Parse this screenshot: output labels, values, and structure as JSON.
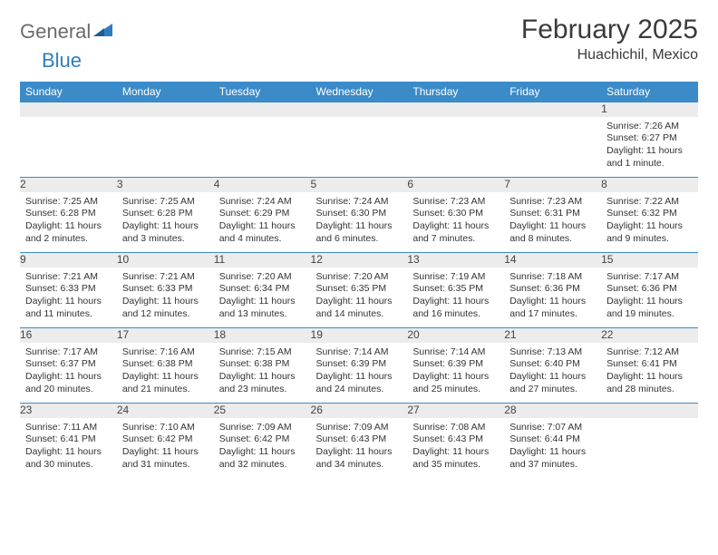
{
  "brand": {
    "part1": "General",
    "part2": "Blue"
  },
  "title": "February 2025",
  "location": "Huachichil, Mexico",
  "colors": {
    "header_bg": "#3b8bc8",
    "header_fg": "#ffffff",
    "daynum_bg": "#ececec",
    "border": "#3b8bc8",
    "logo_blue": "#2f7dc0",
    "logo_gray": "#6b6b6b"
  },
  "weekdays": [
    "Sunday",
    "Monday",
    "Tuesday",
    "Wednesday",
    "Thursday",
    "Friday",
    "Saturday"
  ],
  "weeks": [
    [
      null,
      null,
      null,
      null,
      null,
      null,
      {
        "d": "1",
        "sr": "Sunrise: 7:26 AM",
        "ss": "Sunset: 6:27 PM",
        "dl": "Daylight: 11 hours and 1 minute."
      }
    ],
    [
      {
        "d": "2",
        "sr": "Sunrise: 7:25 AM",
        "ss": "Sunset: 6:28 PM",
        "dl": "Daylight: 11 hours and 2 minutes."
      },
      {
        "d": "3",
        "sr": "Sunrise: 7:25 AM",
        "ss": "Sunset: 6:28 PM",
        "dl": "Daylight: 11 hours and 3 minutes."
      },
      {
        "d": "4",
        "sr": "Sunrise: 7:24 AM",
        "ss": "Sunset: 6:29 PM",
        "dl": "Daylight: 11 hours and 4 minutes."
      },
      {
        "d": "5",
        "sr": "Sunrise: 7:24 AM",
        "ss": "Sunset: 6:30 PM",
        "dl": "Daylight: 11 hours and 6 minutes."
      },
      {
        "d": "6",
        "sr": "Sunrise: 7:23 AM",
        "ss": "Sunset: 6:30 PM",
        "dl": "Daylight: 11 hours and 7 minutes."
      },
      {
        "d": "7",
        "sr": "Sunrise: 7:23 AM",
        "ss": "Sunset: 6:31 PM",
        "dl": "Daylight: 11 hours and 8 minutes."
      },
      {
        "d": "8",
        "sr": "Sunrise: 7:22 AM",
        "ss": "Sunset: 6:32 PM",
        "dl": "Daylight: 11 hours and 9 minutes."
      }
    ],
    [
      {
        "d": "9",
        "sr": "Sunrise: 7:21 AM",
        "ss": "Sunset: 6:33 PM",
        "dl": "Daylight: 11 hours and 11 minutes."
      },
      {
        "d": "10",
        "sr": "Sunrise: 7:21 AM",
        "ss": "Sunset: 6:33 PM",
        "dl": "Daylight: 11 hours and 12 minutes."
      },
      {
        "d": "11",
        "sr": "Sunrise: 7:20 AM",
        "ss": "Sunset: 6:34 PM",
        "dl": "Daylight: 11 hours and 13 minutes."
      },
      {
        "d": "12",
        "sr": "Sunrise: 7:20 AM",
        "ss": "Sunset: 6:35 PM",
        "dl": "Daylight: 11 hours and 14 minutes."
      },
      {
        "d": "13",
        "sr": "Sunrise: 7:19 AM",
        "ss": "Sunset: 6:35 PM",
        "dl": "Daylight: 11 hours and 16 minutes."
      },
      {
        "d": "14",
        "sr": "Sunrise: 7:18 AM",
        "ss": "Sunset: 6:36 PM",
        "dl": "Daylight: 11 hours and 17 minutes."
      },
      {
        "d": "15",
        "sr": "Sunrise: 7:17 AM",
        "ss": "Sunset: 6:36 PM",
        "dl": "Daylight: 11 hours and 19 minutes."
      }
    ],
    [
      {
        "d": "16",
        "sr": "Sunrise: 7:17 AM",
        "ss": "Sunset: 6:37 PM",
        "dl": "Daylight: 11 hours and 20 minutes."
      },
      {
        "d": "17",
        "sr": "Sunrise: 7:16 AM",
        "ss": "Sunset: 6:38 PM",
        "dl": "Daylight: 11 hours and 21 minutes."
      },
      {
        "d": "18",
        "sr": "Sunrise: 7:15 AM",
        "ss": "Sunset: 6:38 PM",
        "dl": "Daylight: 11 hours and 23 minutes."
      },
      {
        "d": "19",
        "sr": "Sunrise: 7:14 AM",
        "ss": "Sunset: 6:39 PM",
        "dl": "Daylight: 11 hours and 24 minutes."
      },
      {
        "d": "20",
        "sr": "Sunrise: 7:14 AM",
        "ss": "Sunset: 6:39 PM",
        "dl": "Daylight: 11 hours and 25 minutes."
      },
      {
        "d": "21",
        "sr": "Sunrise: 7:13 AM",
        "ss": "Sunset: 6:40 PM",
        "dl": "Daylight: 11 hours and 27 minutes."
      },
      {
        "d": "22",
        "sr": "Sunrise: 7:12 AM",
        "ss": "Sunset: 6:41 PM",
        "dl": "Daylight: 11 hours and 28 minutes."
      }
    ],
    [
      {
        "d": "23",
        "sr": "Sunrise: 7:11 AM",
        "ss": "Sunset: 6:41 PM",
        "dl": "Daylight: 11 hours and 30 minutes."
      },
      {
        "d": "24",
        "sr": "Sunrise: 7:10 AM",
        "ss": "Sunset: 6:42 PM",
        "dl": "Daylight: 11 hours and 31 minutes."
      },
      {
        "d": "25",
        "sr": "Sunrise: 7:09 AM",
        "ss": "Sunset: 6:42 PM",
        "dl": "Daylight: 11 hours and 32 minutes."
      },
      {
        "d": "26",
        "sr": "Sunrise: 7:09 AM",
        "ss": "Sunset: 6:43 PM",
        "dl": "Daylight: 11 hours and 34 minutes."
      },
      {
        "d": "27",
        "sr": "Sunrise: 7:08 AM",
        "ss": "Sunset: 6:43 PM",
        "dl": "Daylight: 11 hours and 35 minutes."
      },
      {
        "d": "28",
        "sr": "Sunrise: 7:07 AM",
        "ss": "Sunset: 6:44 PM",
        "dl": "Daylight: 11 hours and 37 minutes."
      },
      null
    ]
  ]
}
